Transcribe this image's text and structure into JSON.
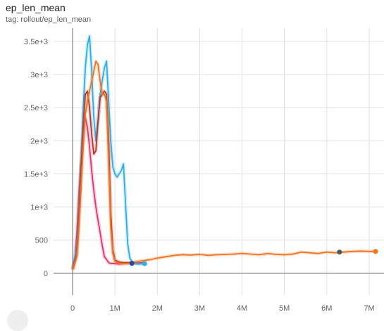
{
  "card": {
    "title": "ep_len_mean",
    "tag": "tag: rollout/ep_len_mean"
  },
  "chart_data": {
    "type": "line",
    "title": "ep_len_mean",
    "subtitle": "tag: rollout/ep_len_mean",
    "xlabel": "",
    "ylabel": "",
    "xlim": [
      -450000,
      7350000
    ],
    "ylim": [
      -330,
      3700
    ],
    "x_ticks": [
      0,
      1000000,
      2000000,
      3000000,
      4000000,
      5000000,
      6000000,
      7000000
    ],
    "x_tick_labels": [
      "0",
      "1M",
      "2M",
      "3M",
      "4M",
      "5M",
      "6M",
      "7M"
    ],
    "y_ticks": [
      0,
      500,
      1000,
      1500,
      2000,
      2500,
      3000,
      3500
    ],
    "y_tick_labels": [
      "0",
      "500",
      "1e+3",
      "1.5e+3",
      "2e+3",
      "2.5e+3",
      "3e+3",
      "3.5e+3"
    ],
    "grid": true,
    "legend": "none",
    "series": [
      {
        "color": "#e8336c",
        "x": [
          0,
          50000,
          100000,
          150000,
          200000,
          250000,
          300000,
          350000,
          400000,
          450000,
          500000,
          550000,
          600000,
          650000,
          700000,
          750000,
          800000,
          850000,
          900000,
          1000000,
          1100000,
          1200000,
          1300000,
          1400000,
          1500000,
          1600000,
          1700000
        ],
        "y": [
          60,
          200,
          600,
          1200,
          1700,
          2100,
          2350,
          2200,
          1900,
          1550,
          1250,
          1000,
          800,
          620,
          420,
          250,
          210,
          160,
          150,
          145,
          140,
          145,
          150,
          150,
          155,
          160,
          165
        ]
      },
      {
        "color": "#2ab0ea",
        "x": [
          0,
          100000,
          150000,
          200000,
          250000,
          300000,
          350000,
          400000,
          450000,
          500000,
          550000,
          600000,
          650000,
          700000,
          750000,
          800000,
          850000,
          900000,
          950000,
          1000000,
          1050000,
          1100000,
          1150000,
          1200000,
          1250000,
          1300000,
          1350000,
          1400000,
          1450000,
          1500000,
          1600000,
          1700000
        ],
        "y": [
          80,
          400,
          1000,
          1700,
          2500,
          3100,
          3450,
          3580,
          3050,
          2350,
          2000,
          2300,
          2700,
          2900,
          3100,
          3200,
          2600,
          2000,
          1600,
          1500,
          1450,
          1500,
          1550,
          1650,
          1050,
          450,
          230,
          180,
          160,
          140,
          140,
          140
        ]
      },
      {
        "color": "#b5372a",
        "x": [
          0,
          100000,
          150000,
          200000,
          250000,
          300000,
          350000,
          400000,
          450000,
          500000,
          550000,
          600000,
          650000,
          700000,
          750000,
          800000,
          850000,
          900000,
          950000,
          1000000,
          1100000,
          1200000,
          1300000,
          1400000
        ],
        "y": [
          60,
          300,
          900,
          1600,
          2200,
          2700,
          2750,
          2500,
          2100,
          1800,
          1850,
          2300,
          2650,
          2700,
          2750,
          2700,
          2000,
          900,
          350,
          200,
          170,
          160,
          160,
          160
        ]
      },
      {
        "color": "#f4731f",
        "x": [
          0,
          100000,
          150000,
          200000,
          250000,
          300000,
          350000,
          400000,
          450000,
          500000,
          550000,
          600000,
          650000,
          700000,
          750000,
          800000,
          850000,
          900000,
          950000,
          1000000,
          1100000,
          1200000,
          1300000,
          1400000,
          1500000,
          1600000,
          1700000,
          1800000,
          1900000,
          2000000,
          2200000,
          2400000,
          2600000,
          2800000,
          3000000,
          3200000,
          3400000,
          3600000,
          3800000,
          4000000,
          4200000,
          4400000,
          4600000,
          4800000,
          5000000,
          5200000,
          5400000,
          5600000,
          5800000,
          6000000,
          6200000,
          6400000,
          6600000,
          6800000,
          7000000,
          7150000
        ],
        "y": [
          50,
          250,
          700,
          1300,
          1900,
          2400,
          2600,
          2750,
          2900,
          3050,
          3200,
          3150,
          2900,
          2700,
          2700,
          2600,
          1700,
          700,
          300,
          180,
          150,
          145,
          150,
          160,
          175,
          185,
          195,
          205,
          215,
          230,
          250,
          270,
          280,
          275,
          285,
          270,
          280,
          285,
          290,
          300,
          290,
          280,
          300,
          285,
          280,
          290,
          320,
          310,
          300,
          320,
          310,
          320,
          330,
          335,
          330,
          330
        ]
      }
    ],
    "markers": [
      {
        "x": 1400000,
        "y": 150,
        "color": "#1f4aa0"
      },
      {
        "x": 1700000,
        "y": 145,
        "color": "#2ab0ea"
      },
      {
        "x": 6300000,
        "y": 320,
        "color": "#455a64"
      },
      {
        "x": 7150000,
        "y": 330,
        "color": "#f4731f"
      }
    ]
  }
}
